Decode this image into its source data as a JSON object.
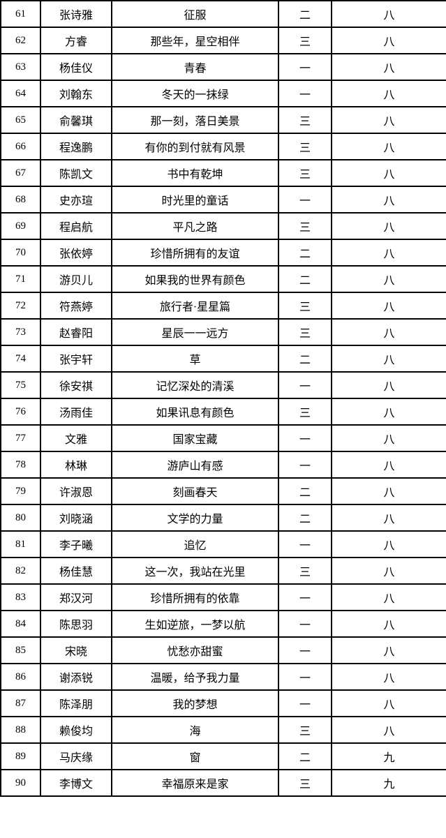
{
  "table": {
    "rows": [
      {
        "index": "61",
        "name": "张诗雅",
        "title": "征服",
        "level": "二",
        "grade": "八"
      },
      {
        "index": "62",
        "name": "方睿",
        "title": "那些年，星空相伴",
        "level": "三",
        "grade": "八"
      },
      {
        "index": "63",
        "name": "杨佳仪",
        "title": "青春",
        "level": "一",
        "grade": "八"
      },
      {
        "index": "64",
        "name": "刘翰东",
        "title": "冬天的一抹绿",
        "level": "一",
        "grade": "八"
      },
      {
        "index": "65",
        "name": "俞馨琪",
        "title": "那一刻，落日美景",
        "level": "三",
        "grade": "八"
      },
      {
        "index": "66",
        "name": "程逸鹏",
        "title": "有你的到付就有风景",
        "level": "三",
        "grade": "八"
      },
      {
        "index": "67",
        "name": "陈凯文",
        "title": "书中有乾坤",
        "level": "三",
        "grade": "八"
      },
      {
        "index": "68",
        "name": "史亦瑄",
        "title": "时光里的童话",
        "level": "一",
        "grade": "八"
      },
      {
        "index": "69",
        "name": "程启航",
        "title": "平凡之路",
        "level": "三",
        "grade": "八"
      },
      {
        "index": "70",
        "name": "张依婷",
        "title": "珍惜所拥有的友谊",
        "level": "二",
        "grade": "八"
      },
      {
        "index": "71",
        "name": "游贝儿",
        "title": "如果我的世界有颜色",
        "level": "二",
        "grade": "八"
      },
      {
        "index": "72",
        "name": "符燕婷",
        "title": "旅行者·星星篇",
        "level": "三",
        "grade": "八"
      },
      {
        "index": "73",
        "name": "赵睿阳",
        "title": "星辰一一远方",
        "level": "三",
        "grade": "八"
      },
      {
        "index": "74",
        "name": "张宇轩",
        "title": "草",
        "level": "二",
        "grade": "八"
      },
      {
        "index": "75",
        "name": "徐安祺",
        "title": "记忆深处的清溪",
        "level": "一",
        "grade": "八"
      },
      {
        "index": "76",
        "name": "汤雨佳",
        "title": "如果讯息有颜色",
        "level": "三",
        "grade": "八"
      },
      {
        "index": "77",
        "name": "文雅",
        "title": "国家宝藏",
        "level": "一",
        "grade": "八"
      },
      {
        "index": "78",
        "name": "林琳",
        "title": "游庐山有感",
        "level": "一",
        "grade": "八"
      },
      {
        "index": "79",
        "name": "许淑恩",
        "title": "刻画春天",
        "level": "二",
        "grade": "八"
      },
      {
        "index": "80",
        "name": "刘晓涵",
        "title": "文学的力量",
        "level": "二",
        "grade": "八"
      },
      {
        "index": "81",
        "name": "李子曦",
        "title": "追忆",
        "level": "一",
        "grade": "八"
      },
      {
        "index": "82",
        "name": "杨佳慧",
        "title": "这一次，我站在光里",
        "level": "三",
        "grade": "八"
      },
      {
        "index": "83",
        "name": "郑汉河",
        "title": "珍惜所拥有的依靠",
        "level": "一",
        "grade": "八"
      },
      {
        "index": "84",
        "name": "陈思羽",
        "title": "生如逆旅，一梦以航",
        "level": "一",
        "grade": "八"
      },
      {
        "index": "85",
        "name": "宋晓",
        "title": "忧愁亦甜蜜",
        "level": "一",
        "grade": "八"
      },
      {
        "index": "86",
        "name": "谢添锐",
        "title": "温暖，给予我力量",
        "level": "一",
        "grade": "八"
      },
      {
        "index": "87",
        "name": "陈泽朋",
        "title": "我的梦想",
        "level": "一",
        "grade": "八"
      },
      {
        "index": "88",
        "name": "赖俊均",
        "title": "海",
        "level": "三",
        "grade": "八"
      },
      {
        "index": "89",
        "name": "马庆缘",
        "title": "窗",
        "level": "二",
        "grade": "九"
      },
      {
        "index": "90",
        "name": "李博文",
        "title": "幸福原来是家",
        "level": "三",
        "grade": "九"
      }
    ]
  }
}
